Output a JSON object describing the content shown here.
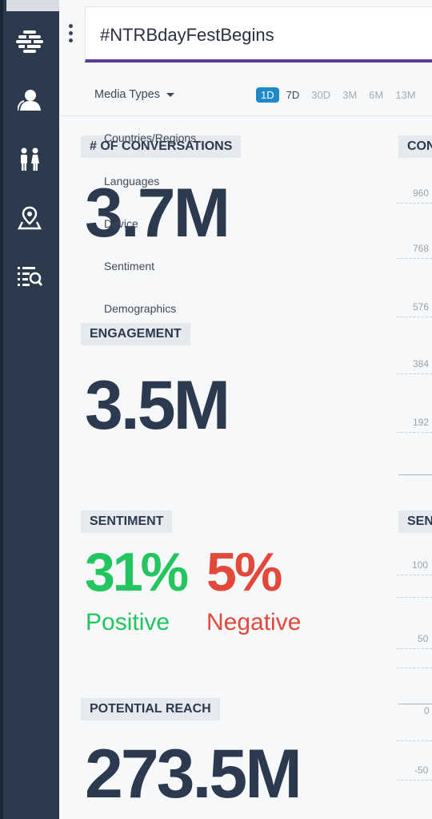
{
  "sidebar": {
    "icons": [
      "menu-logo-icon",
      "user-icon",
      "people-icon",
      "map-pin-icon",
      "search-list-icon"
    ]
  },
  "search": {
    "query": "#NTRBdayFestBegins"
  },
  "filters": {
    "media_types": "Media Types",
    "ranges": [
      "1D",
      "7D",
      "30D",
      "3M",
      "6M",
      "13M"
    ],
    "active_range": "1D"
  },
  "dropdown_menu": {
    "items": [
      "Countries/Regions",
      "Languages",
      "Device",
      "Sentiment",
      "Demographics"
    ]
  },
  "metrics": {
    "conversations": {
      "label": "# OF CONVERSATIONS",
      "value": "3.7M"
    },
    "engagement": {
      "label": "ENGAGEMENT",
      "value": "3.5M"
    },
    "sentiment": {
      "label": "SENTIMENT",
      "positive_pct": "31%",
      "positive_label": "Positive",
      "negative_pct": "5%",
      "negative_label": "Negative",
      "positive_color": "#22c55e",
      "negative_color": "#e3483a"
    },
    "reach": {
      "label": "POTENTIAL REACH",
      "value": "273.5M"
    }
  },
  "right_panel": {
    "top_label": "CON",
    "top_ticks": [
      "960",
      "768",
      "576",
      "384",
      "192"
    ],
    "bottom_label": "SEN",
    "bottom_ticks": [
      "100",
      "50",
      "0",
      "-50"
    ]
  },
  "colors": {
    "sidebar": "#2c3a4d",
    "accent": "#1e88c9",
    "search_underline": "#5b3c8f"
  }
}
